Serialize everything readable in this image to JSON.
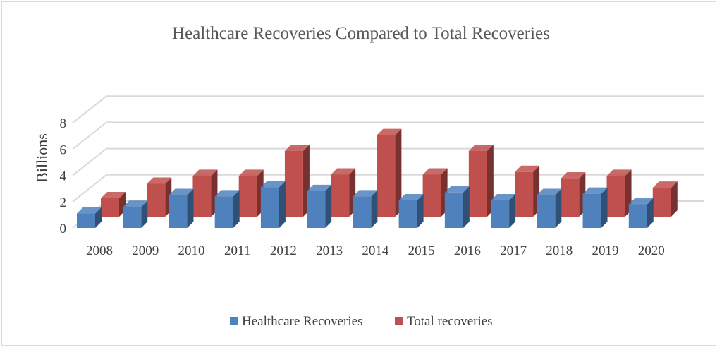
{
  "chart_data": {
    "type": "bar",
    "style": "3d-clustered-column",
    "title": "Healthcare Recoveries Compared to Total Recoveries",
    "xlabel": "",
    "ylabel": "Billions",
    "ylim": [
      0,
      8
    ],
    "yticks": [
      "0",
      "2",
      "4",
      "6",
      "8"
    ],
    "grid": true,
    "legend_position": "bottom",
    "categories": [
      "2008",
      "2009",
      "2010",
      "2011",
      "2012",
      "2013",
      "2014",
      "2015",
      "2016",
      "2017",
      "2018",
      "2019",
      "2020"
    ],
    "series": [
      {
        "name": "Healthcare Recoveries",
        "color": "#4f81bd",
        "values": [
          1.1,
          1.6,
          2.5,
          2.4,
          3.1,
          2.8,
          2.4,
          2.1,
          2.7,
          2.1,
          2.5,
          2.6,
          1.8
        ]
      },
      {
        "name": "Total recoveries",
        "color": "#c0504d",
        "values": [
          1.4,
          2.5,
          3.1,
          3.1,
          5.0,
          3.2,
          6.2,
          3.2,
          5.0,
          3.4,
          2.9,
          3.1,
          2.2
        ]
      }
    ]
  }
}
